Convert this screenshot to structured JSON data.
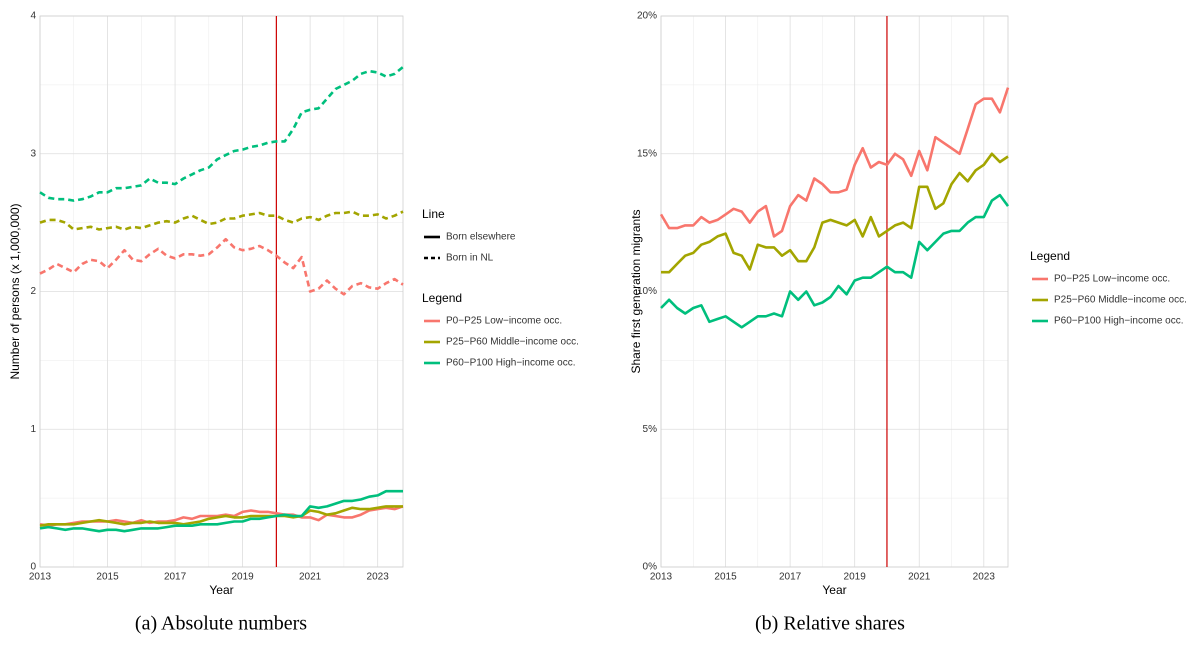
{
  "chart_data": [
    {
      "type": "line",
      "caption": "(a) Absolute numbers",
      "xlabel": "Year",
      "ylabel": "Number of persons (x 1,000,000)",
      "xlim": [
        2013,
        2023.75
      ],
      "xticks": [
        2013,
        2015,
        2017,
        2019,
        2021,
        2023
      ],
      "ylim": [
        0,
        4
      ],
      "yticks": [
        0,
        1,
        2,
        3,
        4
      ],
      "grid": true,
      "vline": 2020,
      "vline_color": "#cc0000",
      "line_legend_title": "Line",
      "legend_title": "Legend",
      "line_types": [
        {
          "name": "Born elsewhere",
          "dash": "solid"
        },
        {
          "name": "Born in NL",
          "dash": "dashed"
        }
      ],
      "x": [
        2013,
        2013.25,
        2013.5,
        2013.75,
        2014,
        2014.25,
        2014.5,
        2014.75,
        2015,
        2015.25,
        2015.5,
        2015.75,
        2016,
        2016.25,
        2016.5,
        2016.75,
        2017,
        2017.25,
        2017.5,
        2017.75,
        2018,
        2018.25,
        2018.5,
        2018.75,
        2019,
        2019.25,
        2019.5,
        2019.75,
        2020,
        2020.25,
        2020.5,
        2020.75,
        2021,
        2021.25,
        2021.5,
        2021.75,
        2022,
        2022.25,
        2022.5,
        2022.75,
        2023,
        2023.25,
        2023.5,
        2023.75
      ],
      "series": [
        {
          "name": "P0−P25 Low−income occ.",
          "color": "#F8766D",
          "values": [
            [
              0.31,
              0.3,
              0.31,
              0.31,
              0.32,
              0.33,
              0.33,
              0.33,
              0.33,
              0.34,
              0.33,
              0.32,
              0.34,
              0.32,
              0.33,
              0.33,
              0.34,
              0.36,
              0.35,
              0.37,
              0.37,
              0.37,
              0.38,
              0.37,
              0.4,
              0.41,
              0.4,
              0.4,
              0.39,
              0.38,
              0.38,
              0.36,
              0.36,
              0.34,
              0.38,
              0.37,
              0.36,
              0.36,
              0.38,
              0.41,
              0.42,
              0.43,
              0.42,
              0.44
            ],
            [
              2.13,
              2.16,
              2.2,
              2.17,
              2.14,
              2.2,
              2.23,
              2.22,
              2.17,
              2.23,
              2.3,
              2.23,
              2.22,
              2.27,
              2.31,
              2.26,
              2.24,
              2.27,
              2.27,
              2.26,
              2.27,
              2.32,
              2.38,
              2.32,
              2.3,
              2.31,
              2.33,
              2.3,
              2.26,
              2.21,
              2.17,
              2.25,
              2.0,
              2.02,
              2.08,
              2.02,
              1.98,
              2.04,
              2.06,
              2.03,
              2.02,
              2.06,
              2.09,
              2.05
            ]
          ]
        },
        {
          "name": "P25−P60 Middle−income occ.",
          "color": "#A3A500",
          "values": [
            [
              0.3,
              0.31,
              0.31,
              0.31,
              0.31,
              0.32,
              0.33,
              0.34,
              0.33,
              0.32,
              0.31,
              0.32,
              0.32,
              0.33,
              0.32,
              0.32,
              0.32,
              0.31,
              0.32,
              0.33,
              0.35,
              0.36,
              0.37,
              0.36,
              0.36,
              0.37,
              0.37,
              0.37,
              0.37,
              0.37,
              0.36,
              0.37,
              0.41,
              0.4,
              0.38,
              0.39,
              0.41,
              0.43,
              0.42,
              0.42,
              0.43,
              0.44,
              0.44,
              0.44
            ],
            [
              2.5,
              2.52,
              2.52,
              2.5,
              2.45,
              2.46,
              2.47,
              2.45,
              2.46,
              2.47,
              2.45,
              2.47,
              2.46,
              2.48,
              2.5,
              2.51,
              2.5,
              2.53,
              2.55,
              2.52,
              2.49,
              2.5,
              2.53,
              2.53,
              2.55,
              2.56,
              2.57,
              2.55,
              2.55,
              2.52,
              2.5,
              2.53,
              2.54,
              2.52,
              2.55,
              2.57,
              2.57,
              2.58,
              2.55,
              2.55,
              2.56,
              2.53,
              2.55,
              2.58
            ]
          ]
        },
        {
          "name": "P60−P100 High−income occ.",
          "color": "#00BF7D",
          "values": [
            [
              0.28,
              0.29,
              0.28,
              0.27,
              0.28,
              0.28,
              0.27,
              0.26,
              0.27,
              0.27,
              0.26,
              0.27,
              0.28,
              0.28,
              0.28,
              0.29,
              0.3,
              0.3,
              0.3,
              0.31,
              0.31,
              0.31,
              0.32,
              0.33,
              0.33,
              0.35,
              0.35,
              0.36,
              0.37,
              0.38,
              0.37,
              0.37,
              0.44,
              0.43,
              0.44,
              0.46,
              0.48,
              0.48,
              0.49,
              0.51,
              0.52,
              0.55,
              0.55,
              0.55
            ],
            [
              2.72,
              2.68,
              2.67,
              2.67,
              2.66,
              2.67,
              2.69,
              2.72,
              2.72,
              2.75,
              2.75,
              2.76,
              2.77,
              2.82,
              2.79,
              2.79,
              2.78,
              2.82,
              2.85,
              2.88,
              2.9,
              2.96,
              2.99,
              3.02,
              3.03,
              3.05,
              3.06,
              3.08,
              3.09,
              3.09,
              3.18,
              3.3,
              3.32,
              3.33,
              3.4,
              3.47,
              3.5,
              3.53,
              3.58,
              3.6,
              3.59,
              3.56,
              3.58,
              3.63
            ]
          ]
        }
      ]
    },
    {
      "type": "line",
      "caption": "(b) Relative shares",
      "xlabel": "Year",
      "ylabel": "Share first generation migrants",
      "xlim": [
        2013,
        2023.75
      ],
      "xticks": [
        2013,
        2015,
        2017,
        2019,
        2021,
        2023
      ],
      "ylim": [
        0,
        20
      ],
      "yticks": [
        {
          "value": 0,
          "label": "0%"
        },
        {
          "value": 5,
          "label": "5%"
        },
        {
          "value": 10,
          "label": "10%"
        },
        {
          "value": 15,
          "label": "15%"
        },
        {
          "value": 20,
          "label": "20%"
        }
      ],
      "grid": true,
      "vline": 2020,
      "vline_color": "#cc0000",
      "legend_title": "Legend",
      "x": [
        2013,
        2013.25,
        2013.5,
        2013.75,
        2014,
        2014.25,
        2014.5,
        2014.75,
        2015,
        2015.25,
        2015.5,
        2015.75,
        2016,
        2016.25,
        2016.5,
        2016.75,
        2017,
        2017.25,
        2017.5,
        2017.75,
        2018,
        2018.25,
        2018.5,
        2018.75,
        2019,
        2019.25,
        2019.5,
        2019.75,
        2020,
        2020.25,
        2020.5,
        2020.75,
        2021,
        2021.25,
        2021.5,
        2021.75,
        2022,
        2022.25,
        2022.5,
        2022.75,
        2023,
        2023.25,
        2023.5,
        2023.75
      ],
      "series": [
        {
          "name": "P0−P25 Low−income occ.",
          "color": "#F8766D",
          "values": [
            12.8,
            12.3,
            12.3,
            12.4,
            12.4,
            12.7,
            12.5,
            12.6,
            12.8,
            13.0,
            12.9,
            12.5,
            12.9,
            13.1,
            12.0,
            12.2,
            13.1,
            13.5,
            13.3,
            14.1,
            13.9,
            13.6,
            13.6,
            13.7,
            14.6,
            15.2,
            14.5,
            14.7,
            14.6,
            15.0,
            14.8,
            14.2,
            15.1,
            14.4,
            15.6,
            15.4,
            15.2,
            15.0,
            15.9,
            16.8,
            17.0,
            17.0,
            16.5,
            17.4
          ]
        },
        {
          "name": "P25−P60 Middle−income occ.",
          "color": "#A3A500",
          "values": [
            10.7,
            10.7,
            11.0,
            11.3,
            11.4,
            11.7,
            11.8,
            12.0,
            12.1,
            11.4,
            11.3,
            10.8,
            11.7,
            11.6,
            11.6,
            11.3,
            11.5,
            11.1,
            11.1,
            11.6,
            12.5,
            12.6,
            12.5,
            12.4,
            12.6,
            12.0,
            12.7,
            12.0,
            12.2,
            12.4,
            12.5,
            12.3,
            13.8,
            13.8,
            13.0,
            13.2,
            13.9,
            14.3,
            14.0,
            14.4,
            14.6,
            15.0,
            14.7,
            14.9
          ]
        },
        {
          "name": "P60−P100 High−income occ.",
          "color": "#00BF7D",
          "values": [
            9.4,
            9.7,
            9.4,
            9.2,
            9.4,
            9.5,
            8.9,
            9.0,
            9.1,
            8.9,
            8.7,
            8.9,
            9.1,
            9.1,
            9.2,
            9.1,
            10.0,
            9.7,
            10.0,
            9.5,
            9.6,
            9.8,
            10.2,
            9.9,
            10.4,
            10.5,
            10.5,
            10.7,
            10.9,
            10.7,
            10.7,
            10.5,
            11.8,
            11.5,
            11.8,
            12.1,
            12.2,
            12.2,
            12.5,
            12.7,
            12.7,
            13.3,
            13.5,
            13.1
          ]
        }
      ]
    }
  ]
}
